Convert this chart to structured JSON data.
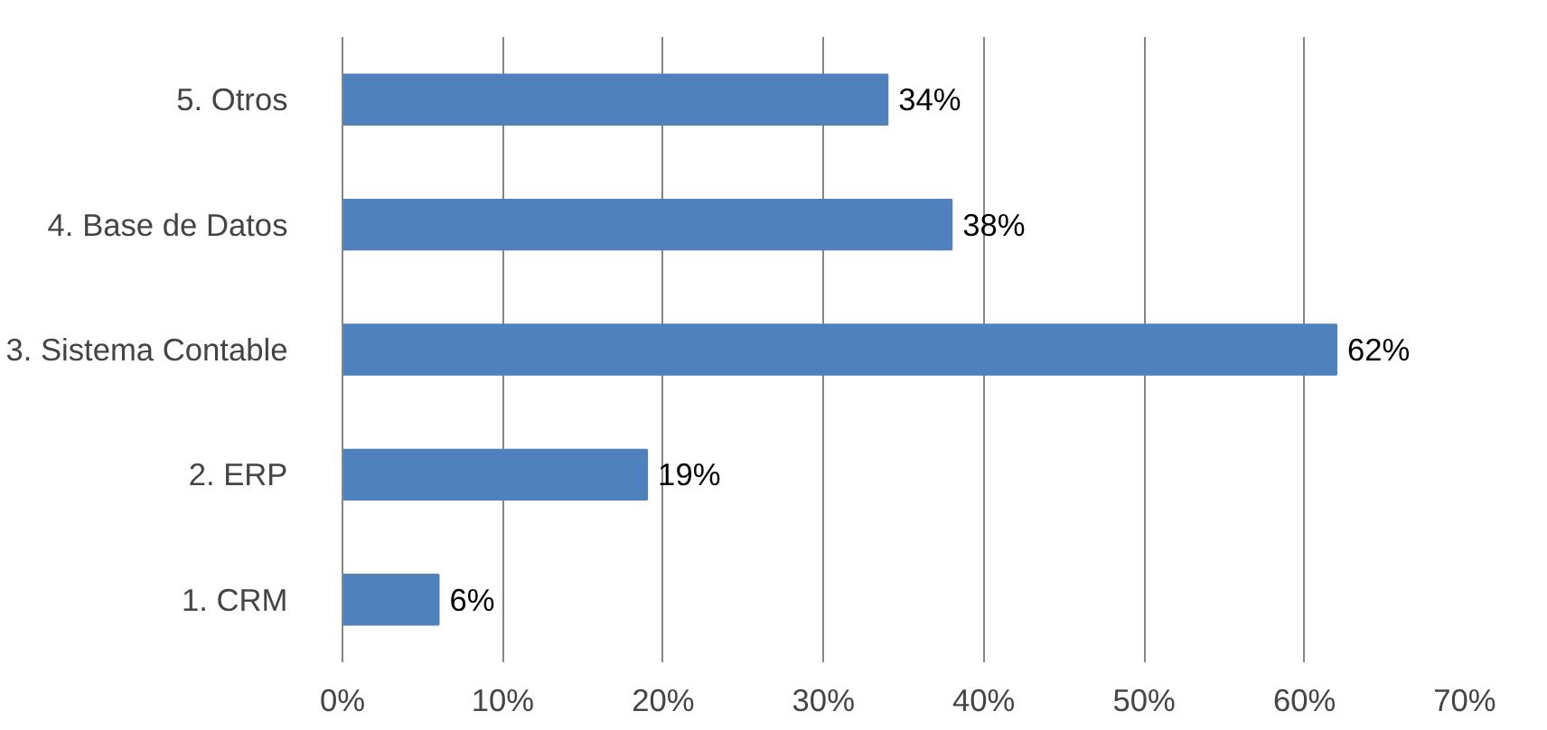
{
  "chart_data": {
    "type": "bar",
    "orientation": "horizontal",
    "categories": [
      "5.     Otros",
      "4.     Base de Datos",
      "3.     Sistema Contable",
      "2.     ERP",
      "1.     CRM"
    ],
    "values": [
      34,
      38,
      62,
      19,
      6
    ],
    "value_labels": [
      "34%",
      "38%",
      "62%",
      "19%",
      "6%"
    ],
    "color": "#4f81bd",
    "xlim": [
      0,
      70
    ],
    "xticks": [
      {
        "value": 0,
        "label": "0%"
      },
      {
        "value": 10,
        "label": "10%"
      },
      {
        "value": 20,
        "label": "20%"
      },
      {
        "value": 30,
        "label": "30%"
      },
      {
        "value": 40,
        "label": "40%"
      },
      {
        "value": 50,
        "label": "50%"
      },
      {
        "value": 60,
        "label": "60%"
      },
      {
        "value": 70,
        "label": "70%"
      }
    ],
    "grid": "x"
  }
}
